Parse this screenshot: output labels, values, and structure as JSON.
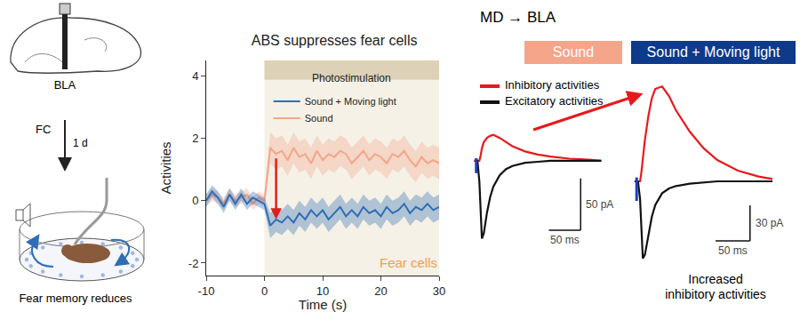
{
  "chart_data": [
    {
      "type": "line",
      "title": "ABS suppresses fear cells",
      "x_label": "Time (s)",
      "y_label": "Activities",
      "x": [
        -10,
        -9,
        -8,
        -7,
        -6,
        -5,
        -4,
        -3,
        -2,
        -1,
        0,
        1,
        2,
        3,
        4,
        5,
        6,
        7,
        8,
        9,
        10,
        11,
        12,
        13,
        14,
        15,
        16,
        17,
        18,
        19,
        20,
        21,
        22,
        23,
        24,
        25,
        26,
        27,
        28,
        29,
        30
      ],
      "xlim": [
        -10,
        30
      ],
      "xticks": [
        -10,
        0,
        10,
        20,
        30
      ],
      "ylim": [
        -2.4,
        4.5
      ],
      "yticks": [
        -2,
        0,
        2,
        4
      ],
      "grid": false,
      "legend": "top left",
      "series": [
        {
          "name": "Sound",
          "color": "#f4a58a",
          "values": [
            0,
            0.2,
            0.1,
            -0.1,
            0.2,
            0,
            0.1,
            0.2,
            -0.1,
            0.1,
            0,
            1.7,
            1.5,
            1.6,
            1.3,
            1.7,
            1.4,
            1.5,
            1.2,
            1.6,
            1.3,
            1.5,
            1.4,
            1.6,
            1.5,
            1.2,
            1.4,
            1.6,
            1.3,
            1.5,
            1.4,
            1.2,
            1.5,
            1.4,
            1.6,
            1.3,
            1.1,
            1.4,
            1.2,
            1.3,
            1.2
          ],
          "error": [
            0.2,
            0.2,
            0.2,
            0.2,
            0.2,
            0.2,
            0.2,
            0.2,
            0.2,
            0.2,
            0.2,
            0.5,
            0.5,
            0.5,
            0.5,
            0.5,
            0.5,
            0.5,
            0.5,
            0.5,
            0.5,
            0.5,
            0.5,
            0.5,
            0.5,
            0.5,
            0.5,
            0.5,
            0.5,
            0.5,
            0.5,
            0.5,
            0.5,
            0.5,
            0.5,
            0.5,
            0.5,
            0.5,
            0.5,
            0.5,
            0.5
          ]
        },
        {
          "name": "Sound + Moving light",
          "color": "#2f6db5",
          "values": [
            0,
            0.3,
            0.1,
            -0.2,
            0.2,
            -0.1,
            0.2,
            -0.1,
            0.1,
            0,
            -0.1,
            -0.8,
            -0.6,
            -0.7,
            -0.5,
            -0.7,
            -0.4,
            -0.6,
            -0.3,
            -0.5,
            -0.3,
            -0.6,
            -0.4,
            -0.2,
            -0.5,
            -0.3,
            -0.5,
            -0.2,
            -0.4,
            -0.3,
            -0.5,
            -0.2,
            -0.4,
            -0.3,
            -0.1,
            -0.4,
            -0.2,
            -0.3,
            -0.1,
            -0.3,
            -0.2
          ],
          "error": [
            0.2,
            0.2,
            0.2,
            0.2,
            0.2,
            0.2,
            0.2,
            0.2,
            0.2,
            0.2,
            0.2,
            0.4,
            0.4,
            0.4,
            0.4,
            0.4,
            0.4,
            0.4,
            0.4,
            0.4,
            0.4,
            0.4,
            0.4,
            0.4,
            0.4,
            0.4,
            0.4,
            0.4,
            0.4,
            0.4,
            0.4,
            0.4,
            0.4,
            0.4,
            0.4,
            0.4,
            0.4,
            0.4,
            0.4,
            0.4,
            0.4
          ]
        }
      ],
      "shaded_region": {
        "x": [
          0,
          30
        ],
        "label": "Photostimulation"
      },
      "annotations": [
        {
          "text": "Fear cells",
          "x": 30,
          "y": -2,
          "color": "#f0a050"
        }
      ],
      "arrow": {
        "x": 2,
        "from": 1.4,
        "to": -0.6,
        "color": "#e0201b"
      }
    },
    {
      "type": "line",
      "title": "Sound",
      "color": "#f4a58a",
      "tick_labels": false,
      "x": [
        0,
        5,
        8,
        10,
        12,
        15,
        20,
        25,
        30,
        40,
        50,
        60,
        80,
        100,
        120,
        150,
        180,
        200
      ],
      "xlim": [
        -5,
        240
      ],
      "ylim": [
        -85,
        35
      ],
      "series": [
        {
          "color": "#e8191c",
          "values": [
            0,
            0,
            0,
            5,
            12,
            18,
            22,
            24,
            25,
            22,
            18,
            14,
            9,
            6,
            4,
            2,
            1,
            0
          ]
        },
        {
          "color": "#111111",
          "values": [
            0,
            0,
            -20,
            -55,
            -75,
            -70,
            -50,
            -35,
            -25,
            -14,
            -8,
            -5,
            -2,
            -1,
            0,
            0,
            0,
            0
          ]
        }
      ],
      "stimulus_ms": 3,
      "stimulus_color": "#1f3fbf",
      "scale_bar": {
        "ms": 50,
        "pA": 50,
        "time_label": "50 ms",
        "current_label": "50 pA"
      }
    },
    {
      "type": "line",
      "title": "Sound + Moving light",
      "color": "#0d3a8a",
      "tick_labels": false,
      "x": [
        0,
        5,
        8,
        10,
        12,
        15,
        20,
        25,
        30,
        40,
        50,
        60,
        80,
        100,
        120,
        150,
        180,
        200
      ],
      "xlim": [
        -5,
        240
      ],
      "ylim": [
        -75,
        90
      ],
      "series": [
        {
          "color": "#e8191c",
          "values": [
            0,
            0,
            0,
            8,
            20,
            35,
            55,
            70,
            78,
            80,
            72,
            60,
            42,
            28,
            18,
            9,
            4,
            2
          ]
        },
        {
          "color": "#111111",
          "values": [
            0,
            0,
            -15,
            -45,
            -65,
            -62,
            -45,
            -30,
            -20,
            -10,
            -6,
            -4,
            -2,
            -1,
            0,
            0,
            0,
            0
          ]
        }
      ],
      "stimulus_ms": 3,
      "stimulus_color": "#1f3fbf",
      "scale_bar": {
        "ms": 50,
        "pA": 30,
        "time_label": "50 ms",
        "current_label": "30 pA"
      }
    }
  ],
  "schematic": {
    "region": "BLA",
    "procedure": "FC",
    "delay": "1 d",
    "result": "Fear memory reduces"
  },
  "right_panel": {
    "title": "MD → BLA",
    "legend": [
      {
        "name": "Inhibitory activities",
        "color": "#e8191c"
      },
      {
        "name": "Excitatory activities",
        "color": "#111111"
      }
    ],
    "caption": [
      "Increased",
      "inhibitory activities"
    ],
    "arrow_color": "#e8191c"
  }
}
